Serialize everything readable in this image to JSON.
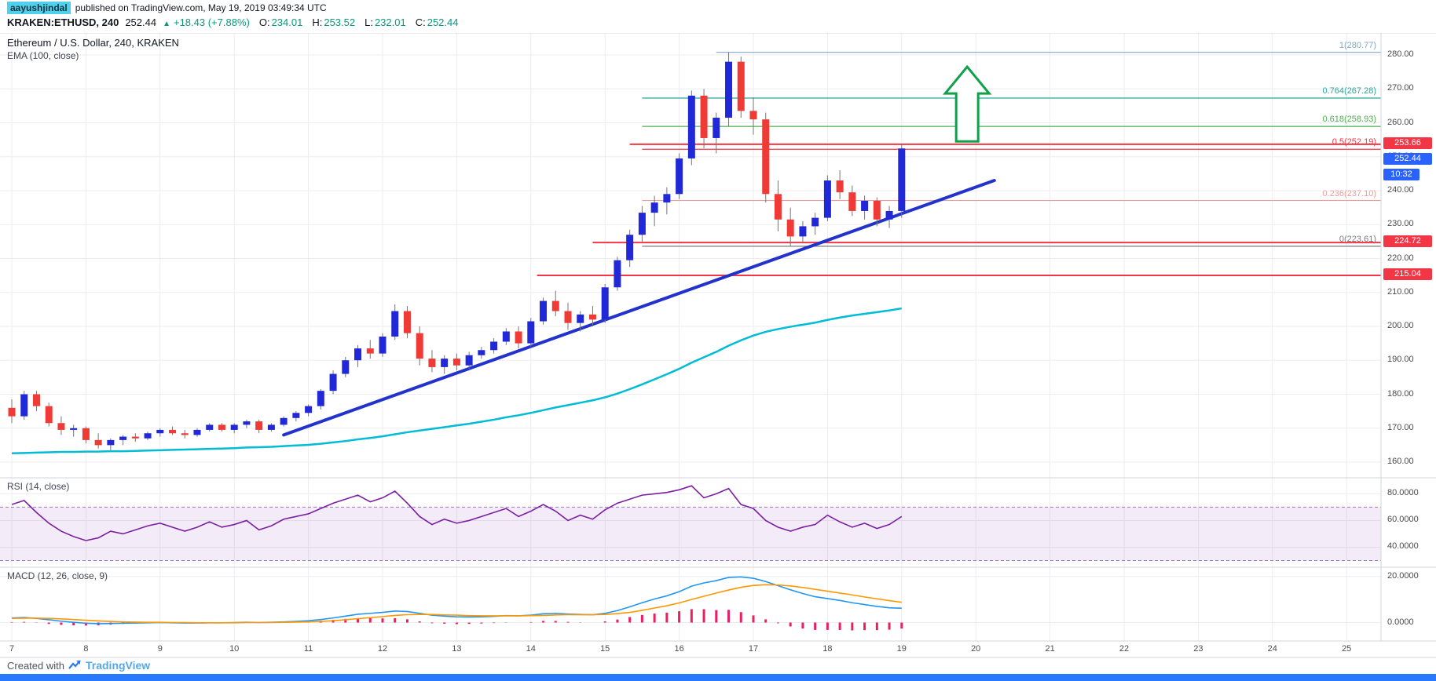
{
  "header": {
    "author": "aayushjindal",
    "published_text": "published on TradingView.com, May 19, 2019 03:49:34 UTC",
    "symbol": "KRAKEN:ETHUSD, 240",
    "last_price": "252.44",
    "up_arrow": "▲",
    "change": "+18.43 (+7.88%)",
    "ohlc": [
      {
        "label": "O:",
        "value": "234.01"
      },
      {
        "label": "H:",
        "value": "253.52"
      },
      {
        "label": "L:",
        "value": "232.01"
      },
      {
        "label": "C:",
        "value": "252.44"
      }
    ]
  },
  "footer": {
    "created_with": "Created with",
    "brand": "TradingView"
  },
  "colors": {
    "candle_up": "#2028d7",
    "candle_down": "#ef3a36",
    "wick": "#757575",
    "ema": "#00bcd4",
    "trendline": "#2133cc",
    "line_red": "#f23645",
    "badge_red_bg": "#f23645",
    "badge_blue_bg": "#2962ff",
    "rsi_line": "#7b1fa2",
    "rsi_band_fill": "rgba(123,31,162,0.09)",
    "rsi_band_edge": "#9575cd",
    "macd_line": "#2196f3",
    "macd_signal": "#ff9800",
    "macd_hist": "#e91e63",
    "grid": "#ededf1",
    "separator": "#d1d4dc",
    "axis_text": "#4a4a4a",
    "arrow_green": "#12a04b",
    "change_green": "#089981",
    "author_bg": "#51d0eb",
    "footer_brand": "#54a9e2",
    "bottom_bar": "#2979ff"
  },
  "chart_data": [
    {
      "type": "candlestick",
      "title": "Ethereum / U.S. Dollar, 240, KRAKEN",
      "symbol": "KRAKEN:ETHUSD",
      "interval": "240",
      "overlays": [
        "EMA (100, close)"
      ],
      "x": {
        "day_labels": [
          "7",
          "8",
          "9",
          "10",
          "11",
          "12",
          "13",
          "14",
          "15",
          "16",
          "17",
          "18",
          "19",
          "20",
          "21",
          "22",
          "23",
          "24",
          "25"
        ],
        "candles_per_day": 6
      },
      "ylim": [
        155,
        286.5
      ],
      "y_ticks": [
        280,
        270,
        260,
        250,
        240,
        230,
        220,
        210,
        200,
        190,
        180,
        170,
        160
      ],
      "candles_ohlc": [
        [
          176,
          178.5,
          171.5,
          173.5
        ],
        [
          173.5,
          181,
          172.5,
          180
        ],
        [
          180,
          181,
          175,
          176.5
        ],
        [
          176.5,
          177.5,
          170.5,
          171.5
        ],
        [
          171.5,
          173.5,
          168,
          169.5
        ],
        [
          169.5,
          171,
          167.5,
          170
        ],
        [
          170,
          170.5,
          165.5,
          166.5
        ],
        [
          166.5,
          168.5,
          164,
          165
        ],
        [
          165,
          167,
          163.5,
          166.5
        ],
        [
          166.5,
          168,
          165,
          167.5
        ],
        [
          167.5,
          168.5,
          166,
          167
        ],
        [
          167,
          169,
          166.5,
          168.5
        ],
        [
          168.5,
          170,
          167.5,
          169.5
        ],
        [
          169.5,
          170.5,
          168,
          168.5
        ],
        [
          168.5,
          169.5,
          167,
          168
        ],
        [
          168,
          170,
          167.5,
          169.5
        ],
        [
          169.5,
          171.5,
          169,
          171
        ],
        [
          171,
          171.5,
          169,
          169.5
        ],
        [
          169.5,
          171.5,
          168.5,
          171
        ],
        [
          171,
          172.5,
          170,
          172
        ],
        [
          172,
          172.5,
          168.5,
          169.5
        ],
        [
          169.5,
          171.5,
          169,
          171
        ],
        [
          171,
          173.5,
          170.5,
          173
        ],
        [
          173,
          175,
          172,
          174.5
        ],
        [
          174.5,
          177,
          173.5,
          176.5
        ],
        [
          176.5,
          181.5,
          175.5,
          181
        ],
        [
          181,
          187,
          180,
          186
        ],
        [
          186,
          191,
          185,
          190
        ],
        [
          190,
          194.5,
          188,
          193.5
        ],
        [
          193.5,
          196,
          190.5,
          192
        ],
        [
          192,
          198,
          191,
          197
        ],
        [
          197,
          206.5,
          196,
          204.5
        ],
        [
          204.5,
          206,
          196.5,
          198
        ],
        [
          198,
          200,
          188.5,
          190.5
        ],
        [
          190.5,
          193,
          186.5,
          188
        ],
        [
          188,
          191.5,
          186,
          190.5
        ],
        [
          190.5,
          192,
          187,
          188.5
        ],
        [
          188.5,
          192.5,
          187.5,
          191.5
        ],
        [
          191.5,
          194,
          190.5,
          193
        ],
        [
          193,
          196.5,
          192,
          195.5
        ],
        [
          195.5,
          199.5,
          194.5,
          198.5
        ],
        [
          198.5,
          200,
          193.5,
          195
        ],
        [
          195,
          202.5,
          194,
          201.5
        ],
        [
          201.5,
          208.5,
          200.5,
          207.5
        ],
        [
          207.5,
          210.5,
          203,
          204.5
        ],
        [
          204.5,
          207,
          199,
          201
        ],
        [
          201,
          204.5,
          198.5,
          203.5
        ],
        [
          203.5,
          206,
          200,
          202
        ],
        [
          202,
          212.5,
          201,
          211.5
        ],
        [
          211.5,
          220.5,
          210.5,
          219.5
        ],
        [
          219.5,
          228.5,
          217.5,
          227
        ],
        [
          227,
          235.5,
          225,
          233.5
        ],
        [
          233.5,
          238.5,
          229.5,
          236.5
        ],
        [
          236.5,
          241,
          233,
          239
        ],
        [
          239,
          251,
          237.5,
          249.5
        ],
        [
          249.5,
          269.5,
          247.5,
          268
        ],
        [
          268,
          270,
          252.5,
          255.5
        ],
        [
          255.5,
          263,
          251,
          261.5
        ],
        [
          261.5,
          280.77,
          259,
          278
        ],
        [
          278,
          279.5,
          261.5,
          263.5
        ],
        [
          263.5,
          267.5,
          256.5,
          261
        ],
        [
          261,
          263,
          236.5,
          239
        ],
        [
          239,
          243,
          228,
          231.5
        ],
        [
          231.5,
          235,
          223.61,
          226.5
        ],
        [
          226.5,
          231,
          224.5,
          229.5
        ],
        [
          229.5,
          233.5,
          227,
          232
        ],
        [
          232,
          244.5,
          231,
          243
        ],
        [
          243,
          246,
          237.5,
          239.5
        ],
        [
          239.5,
          241.5,
          232.5,
          234
        ],
        [
          234,
          238.5,
          231.5,
          237
        ],
        [
          237,
          238,
          229.5,
          231.5
        ],
        [
          231.5,
          235.5,
          229,
          234
        ],
        [
          234.01,
          253.52,
          232.01,
          252.44
        ]
      ],
      "ema_100": [
        162.6,
        162.7,
        162.8,
        162.9,
        163.0,
        163.0,
        163.1,
        163.1,
        163.2,
        163.2,
        163.3,
        163.4,
        163.5,
        163.6,
        163.7,
        163.8,
        163.9,
        164.0,
        164.1,
        164.3,
        164.4,
        164.5,
        164.7,
        164.9,
        165.1,
        165.4,
        165.8,
        166.2,
        166.7,
        167.1,
        167.6,
        168.2,
        168.8,
        169.3,
        169.8,
        170.3,
        170.8,
        171.3,
        171.9,
        172.5,
        173.2,
        173.8,
        174.5,
        175.3,
        176.1,
        176.8,
        177.5,
        178.2,
        179.1,
        180.2,
        181.5,
        182.9,
        184.4,
        185.9,
        187.5,
        189.3,
        190.9,
        192.5,
        194.3,
        195.9,
        197.3,
        198.4,
        199.2,
        199.9,
        200.5,
        201.1,
        201.9,
        202.6,
        203.2,
        203.7,
        204.2,
        204.7,
        205.3
      ],
      "trendline": {
        "x1_index": 22,
        "price1": 168,
        "x2_index": 79.5,
        "price2": 243
      },
      "fib_retracement": {
        "low": 223.61,
        "high": 280.77,
        "levels": [
          {
            "ratio": "1",
            "price": 280.77,
            "label": "1(280.77)",
            "color": "#81a6c3",
            "start_index": 57
          },
          {
            "ratio": "0.764",
            "price": 267.28,
            "label": "0.764(267.28)",
            "color": "#26a69a",
            "start_index": 51
          },
          {
            "ratio": "0.618",
            "price": 258.93,
            "label": "0.618(258.93)",
            "color": "#4caf50",
            "start_index": 51
          },
          {
            "ratio": "0.5",
            "price": 252.19,
            "label": "0.5(252.19)",
            "color": "#f23645",
            "start_index": 51
          },
          {
            "ratio": "0.236",
            "price": 237.1,
            "label": "0.236(237.10)",
            "color": "#ef9a9a",
            "start_index": 51
          },
          {
            "ratio": "0",
            "price": 223.61,
            "label": "0(223.61)",
            "color": "#787b86",
            "start_index": 51
          }
        ]
      },
      "resistance_support_lines": [
        {
          "price": 253.66,
          "badge": "253.66",
          "start_index": 50
        },
        {
          "price": 224.72,
          "badge": "224.72",
          "start_index": 47
        },
        {
          "price": 215.04,
          "badge": "215.04",
          "start_index": 42.5
        }
      ],
      "last_price": {
        "value": 252.44,
        "badge": "252.44"
      },
      "countdown": "10:32",
      "arrow": {
        "index": 77.3,
        "price_top": 276.5,
        "price_bottom": 254.5
      }
    },
    {
      "type": "line",
      "title": "RSI (14, close)",
      "ylim": [
        25,
        92
      ],
      "y_ticks": [
        80,
        60,
        40
      ],
      "bands": [
        70,
        30
      ],
      "values": [
        72,
        75,
        66,
        58,
        52,
        48,
        45,
        47,
        52,
        50,
        53,
        56,
        58,
        55,
        52,
        55,
        59,
        55,
        57,
        60,
        53,
        56,
        61,
        63,
        65,
        69,
        73,
        76,
        79,
        74,
        77,
        82,
        73,
        63,
        57,
        61,
        58,
        60,
        63,
        66,
        69,
        63,
        67,
        72,
        67,
        60,
        64,
        61,
        68,
        73,
        76,
        79,
        80,
        81,
        83,
        86,
        77,
        80,
        84,
        72,
        69,
        60,
        55,
        52,
        55,
        57,
        64,
        59,
        55,
        58,
        54,
        57,
        63
      ]
    },
    {
      "type": "macd",
      "title": "MACD (12, 26, close, 9)",
      "ylim": [
        -8,
        24
      ],
      "y_ticks": [
        20,
        0
      ],
      "macd": [
        2.0,
        2.2,
        1.8,
        1.2,
        0.6,
        0.1,
        -0.3,
        -0.5,
        -0.4,
        -0.3,
        -0.2,
        -0.1,
        0.0,
        -0.1,
        -0.2,
        -0.2,
        -0.1,
        -0.1,
        0.0,
        0.1,
        0.0,
        0.1,
        0.3,
        0.5,
        0.8,
        1.3,
        2.0,
        2.8,
        3.6,
        4.0,
        4.4,
        5.0,
        4.8,
        4.0,
        3.2,
        2.8,
        2.5,
        2.4,
        2.5,
        2.7,
        3.0,
        2.9,
        3.2,
        3.8,
        4.0,
        3.7,
        3.5,
        3.4,
        4.0,
        5.2,
        6.8,
        8.6,
        10.2,
        11.6,
        13.4,
        15.8,
        17.2,
        18.2,
        19.6,
        19.8,
        19.2,
        17.8,
        16.0,
        14.2,
        12.6,
        11.2,
        10.4,
        9.6,
        8.6,
        7.8,
        7.0,
        6.4,
        6.2
      ],
      "signal": [
        1.8,
        1.9,
        1.9,
        1.8,
        1.6,
        1.3,
        1.0,
        0.7,
        0.5,
        0.3,
        0.2,
        0.1,
        0.1,
        0.0,
        0.0,
        -0.1,
        -0.1,
        -0.1,
        -0.1,
        0.0,
        0.0,
        0.0,
        0.1,
        0.2,
        0.3,
        0.5,
        0.8,
        1.2,
        1.7,
        2.1,
        2.6,
        3.1,
        3.4,
        3.5,
        3.5,
        3.3,
        3.2,
        3.0,
        2.9,
        2.9,
        2.9,
        2.9,
        3.0,
        3.1,
        3.3,
        3.4,
        3.4,
        3.4,
        3.5,
        3.9,
        4.4,
        5.3,
        6.3,
        7.3,
        8.5,
        10.0,
        11.4,
        12.8,
        14.1,
        15.3,
        16.1,
        16.4,
        16.3,
        15.9,
        15.2,
        14.4,
        13.6,
        12.8,
        12.0,
        11.1,
        10.3,
        9.5,
        8.8
      ]
    }
  ]
}
